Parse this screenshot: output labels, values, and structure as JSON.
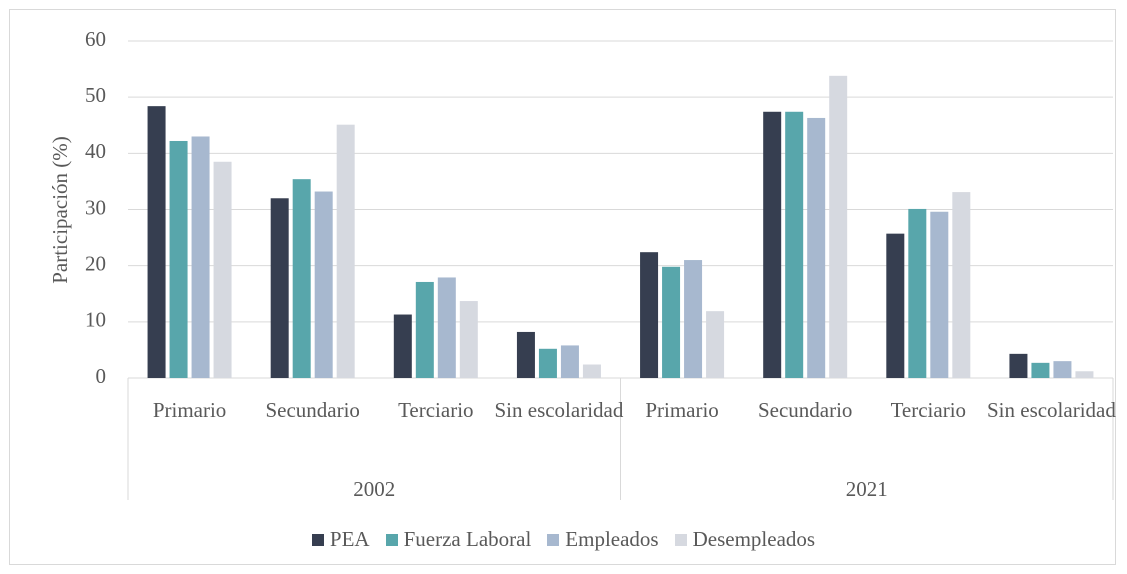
{
  "chart_data": {
    "type": "bar",
    "y_label": "Participación (%)",
    "categories": [
      "Primario",
      "Secundario",
      "Terciario",
      "Sin escolaridad",
      "Primario",
      "Secundario",
      "Terciario",
      "Sin escolaridad"
    ],
    "group_labels": [
      "2002",
      "2021"
    ],
    "series": [
      {
        "name": "PEA",
        "color": "#363e50",
        "values": [
          48.4,
          32.0,
          11.3,
          8.2,
          22.4,
          47.4,
          25.7,
          4.3
        ]
      },
      {
        "name": "Fuerza Laboral",
        "color": "#58a6ab",
        "values": [
          42.2,
          35.4,
          17.1,
          5.2,
          19.8,
          47.4,
          30.1,
          2.7
        ]
      },
      {
        "name": "Empleados",
        "color": "#a7b8cf",
        "values": [
          43.0,
          33.2,
          17.9,
          5.8,
          21.0,
          46.3,
          29.6,
          3.0
        ]
      },
      {
        "name": "Desempleados",
        "color": "#d6d9e0",
        "values": [
          38.5,
          45.1,
          13.7,
          2.4,
          11.9,
          53.8,
          33.1,
          1.2
        ]
      }
    ],
    "ylim": [
      0,
      60
    ],
    "yticks": [
      0,
      10,
      20,
      30,
      40,
      50,
      60
    ],
    "grid": true,
    "legend": "bottom"
  }
}
